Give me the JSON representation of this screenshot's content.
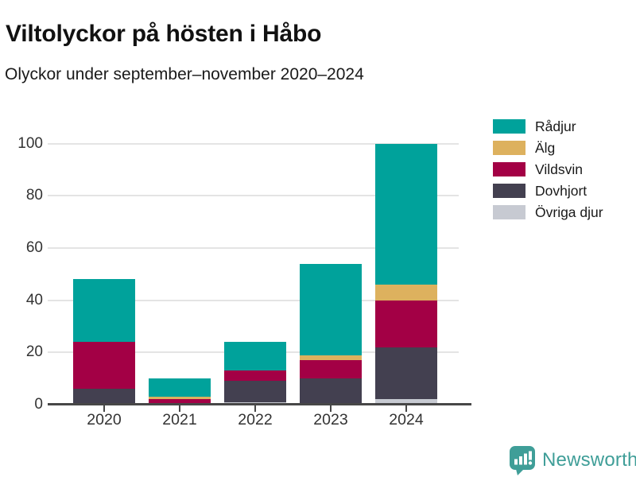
{
  "chart_data": {
    "type": "bar",
    "stacked": true,
    "title": "Viltolyckor på hösten i Håbo",
    "subtitle": "Olyckor under september–november 2020–2024",
    "categories": [
      "2020",
      "2021",
      "2022",
      "2023",
      "2024"
    ],
    "series": [
      {
        "name": "Rådjur",
        "color": "#00a29b",
        "values": [
          24,
          7,
          11,
          35,
          54
        ]
      },
      {
        "name": "Älg",
        "color": "#ddb15e",
        "values": [
          0,
          1,
          0,
          2,
          6
        ]
      },
      {
        "name": "Vildsvin",
        "color": "#a30045",
        "values": [
          18,
          2,
          4,
          7,
          18
        ]
      },
      {
        "name": "Dovhjort",
        "color": "#434050",
        "values": [
          6,
          0,
          8,
          10,
          20
        ]
      },
      {
        "name": "Övriga djur",
        "color": "#c7cad2",
        "values": [
          0,
          0,
          1,
          0,
          2
        ]
      }
    ],
    "stack_bottom_to_top": [
      "Övriga djur",
      "Dovhjort",
      "Vildsvin",
      "Älg",
      "Rådjur"
    ],
    "totals": [
      48,
      10,
      24,
      54,
      100
    ],
    "yticks": [
      0,
      20,
      40,
      60,
      80,
      100
    ],
    "ylim": [
      0,
      100
    ],
    "xlabel": "",
    "ylabel": "",
    "grid": true,
    "legend_position": "right"
  },
  "footer": {
    "brand": "Newsworthy",
    "brand_color": "#3f9e98"
  }
}
